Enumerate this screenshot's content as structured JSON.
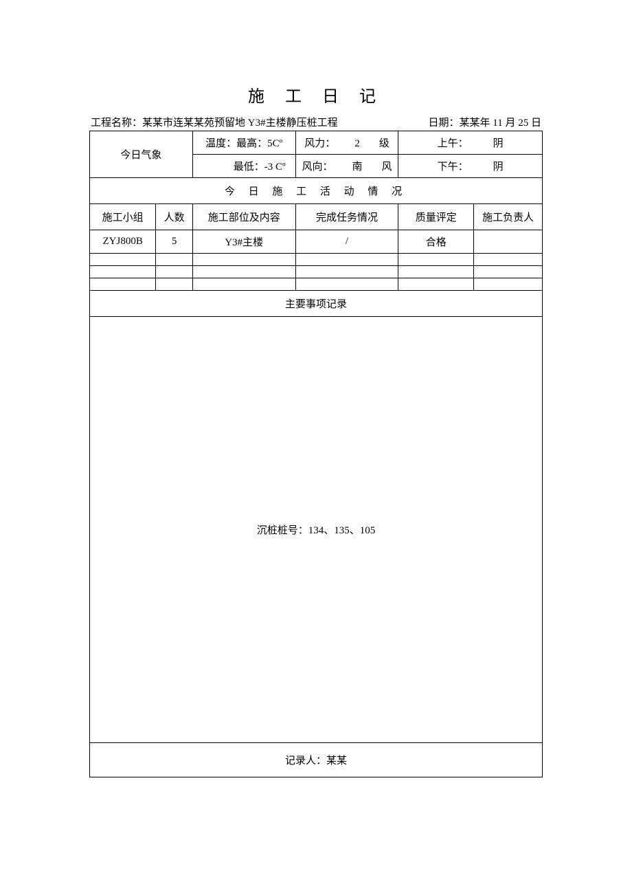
{
  "title": "施 工 日 记",
  "header": {
    "project_label": "工程名称：",
    "project_name": "某某市连某某苑预留地 Y3#主楼静压桩工程",
    "date_label": "日期：",
    "date_value": "某某年 11 月 25 日"
  },
  "weather": {
    "label": "今日气象",
    "temp_label": "温度：",
    "temp_high_label": "最高：",
    "temp_high_value": "5Cº",
    "temp_low_label": "最低：",
    "temp_low_value": "-3 Cº",
    "wind_force_label": "风力：",
    "wind_force_value": "2",
    "wind_force_unit": "级",
    "wind_dir_label": "风向：",
    "wind_dir_value": "南",
    "wind_dir_unit": "风",
    "am_label": "上午：",
    "am_value": "阴",
    "pm_label": "下午：",
    "pm_value": "阴"
  },
  "activity": {
    "section_title": "今 日 施 工 活 动 情 况",
    "columns": {
      "group": "施工小组",
      "count": "人数",
      "part": "施工部位及内容",
      "task": "完成任务情况",
      "quality": "质量评定",
      "owner": "施工负责人"
    },
    "rows": [
      {
        "group": "ZYJ800B",
        "count": "5",
        "part": "Y3#主楼",
        "task": "/",
        "quality": "合格",
        "owner": ""
      },
      {
        "group": "",
        "count": "",
        "part": "",
        "task": "",
        "quality": "",
        "owner": ""
      },
      {
        "group": "",
        "count": "",
        "part": "",
        "task": "",
        "quality": "",
        "owner": ""
      },
      {
        "group": "",
        "count": "",
        "part": "",
        "task": "",
        "quality": "",
        "owner": ""
      }
    ]
  },
  "notes": {
    "title": "主要事项记录",
    "body": "沉桩桩号：134、135、105"
  },
  "recorder": {
    "label": "记录人：",
    "name": "某某"
  }
}
